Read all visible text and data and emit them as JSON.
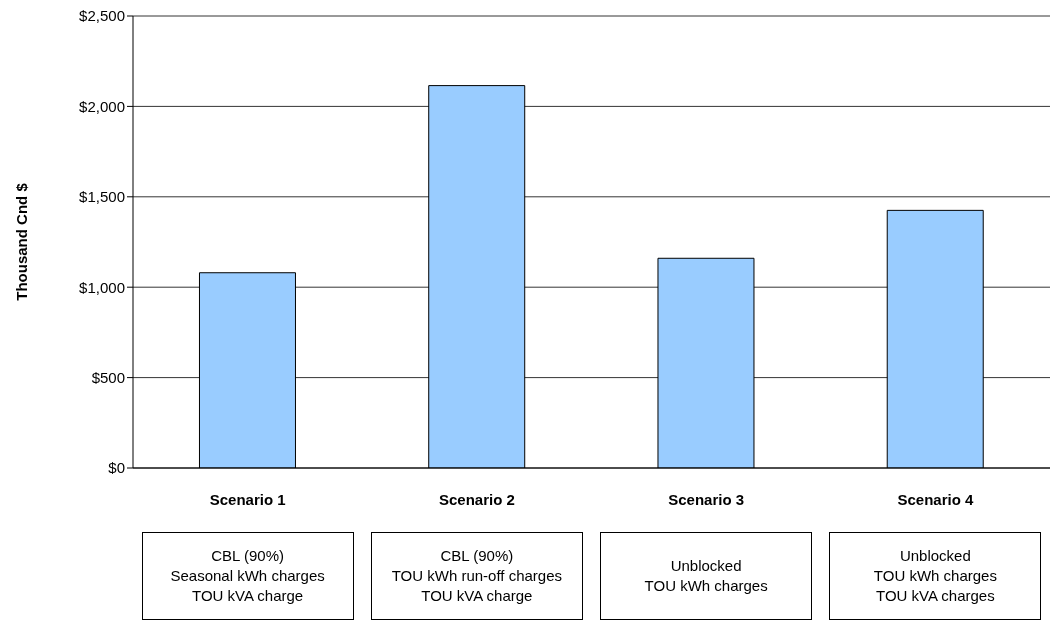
{
  "chart_data": {
    "type": "bar",
    "ylabel": "Thousand Cnd $",
    "categories": [
      "Scenario 1",
      "Scenario 2",
      "Scenario 3",
      "Scenario 4"
    ],
    "values": [
      1080,
      2115,
      1160,
      1425
    ],
    "color": "#99ccff",
    "ylim": [
      0,
      2500
    ],
    "yticks": [
      {
        "value": 0,
        "label": "$0"
      },
      {
        "value": 500,
        "label": "$500"
      },
      {
        "value": 1000,
        "label": "$1,000"
      },
      {
        "value": 1500,
        "label": "$1,500"
      },
      {
        "value": 2000,
        "label": "$2,000"
      },
      {
        "value": 2500,
        "label": "$2,500"
      }
    ],
    "grid": "y",
    "annotations": [
      "CBL (90%)\nSeasonal kWh charges\nTOU kVA charge",
      "CBL (90%)\nTOU kWh run-off charges\nTOU kVA charge",
      "Unblocked\nTOU kWh charges",
      "Unblocked\nTOU kWh charges\nTOU kVA charges"
    ]
  }
}
